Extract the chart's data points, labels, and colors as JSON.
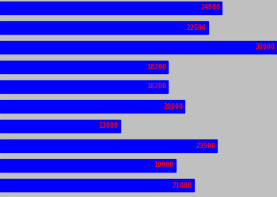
{
  "values": [
    24000,
    22500,
    30000,
    18200,
    18200,
    20000,
    13000,
    23500,
    19000,
    21000
  ],
  "bar_color": "#0000ff",
  "label_color": "#ff0000",
  "background_color": "#c0c0c0",
  "max_val": 30000,
  "label_fontsize": 6,
  "fig_width": 3.5,
  "fig_height": 2.5,
  "dpi": 100
}
